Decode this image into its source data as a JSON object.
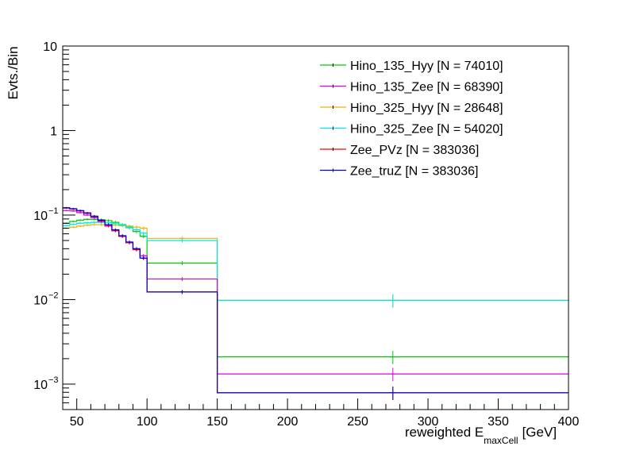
{
  "chart_data": {
    "type": "line",
    "subtype": "step-histogram",
    "ylabel": "Evts./Bin",
    "xlabel_main": "reweighted E",
    "xlabel_sub": "maxCell",
    "xlabel_unit": "[GeV]",
    "xlim": [
      40,
      400
    ],
    "ylim": [
      0.0005,
      10
    ],
    "y_scale": "log",
    "grid": false,
    "legend_position": "top-right",
    "x_ticks": [
      50,
      100,
      150,
      200,
      250,
      300,
      350,
      400
    ],
    "y_ticks": [
      {
        "value": 0.001,
        "base": "10",
        "exp": "−3"
      },
      {
        "value": 0.01,
        "base": "10",
        "exp": "−2"
      },
      {
        "value": 0.1,
        "base": "10",
        "exp": "−1"
      },
      {
        "value": 1,
        "base": "1",
        "exp": ""
      },
      {
        "value": 10,
        "base": "10",
        "exp": ""
      }
    ],
    "bin_edges": [
      40,
      45,
      50,
      55,
      60,
      65,
      70,
      75,
      80,
      85,
      90,
      95,
      100,
      150,
      400
    ],
    "series": [
      {
        "name": "Hino_135_Hyy [N = 74010]",
        "color": "#00cc00",
        "values": [
          0.08,
          0.084,
          0.087,
          0.089,
          0.089,
          0.088,
          0.086,
          0.082,
          0.077,
          0.071,
          0.064,
          0.056,
          0.027,
          0.0021,
          0
        ]
      },
      {
        "name": "Hino_135_Zee [N = 68390]",
        "color": "#dd00dd",
        "values": [
          0.113,
          0.112,
          0.107,
          0.1,
          0.093,
          0.084,
          0.074,
          0.065,
          0.056,
          0.047,
          0.039,
          0.033,
          0.0175,
          0.00132,
          0
        ]
      },
      {
        "name": "Hino_325_Hyy [N = 28648]",
        "color": "#e6b800",
        "values": [
          0.07,
          0.072,
          0.074,
          0.076,
          0.077,
          0.077,
          0.077,
          0.076,
          0.075,
          0.074,
          0.072,
          0.07,
          0.053,
          0.0098,
          0
        ]
      },
      {
        "name": "Hino_325_Zee [N = 54020]",
        "color": "#00e6e6",
        "values": [
          0.075,
          0.078,
          0.08,
          0.081,
          0.082,
          0.082,
          0.081,
          0.079,
          0.076,
          0.072,
          0.067,
          0.061,
          0.05,
          0.0098,
          0
        ]
      },
      {
        "name": "Zee_PVz [N = 383036]",
        "color": "#ff0000",
        "values": [
          0.121,
          0.118,
          0.112,
          0.105,
          0.096,
          0.086,
          0.076,
          0.066,
          0.056,
          0.047,
          0.039,
          0.031,
          0.0123,
          0.00079,
          0
        ]
      },
      {
        "name": "Zee_truZ [N = 383036]",
        "color": "#0000cc",
        "values": [
          0.122,
          0.119,
          0.113,
          0.106,
          0.097,
          0.087,
          0.077,
          0.067,
          0.057,
          0.048,
          0.04,
          0.031,
          0.0123,
          0.00079,
          0
        ]
      }
    ]
  }
}
